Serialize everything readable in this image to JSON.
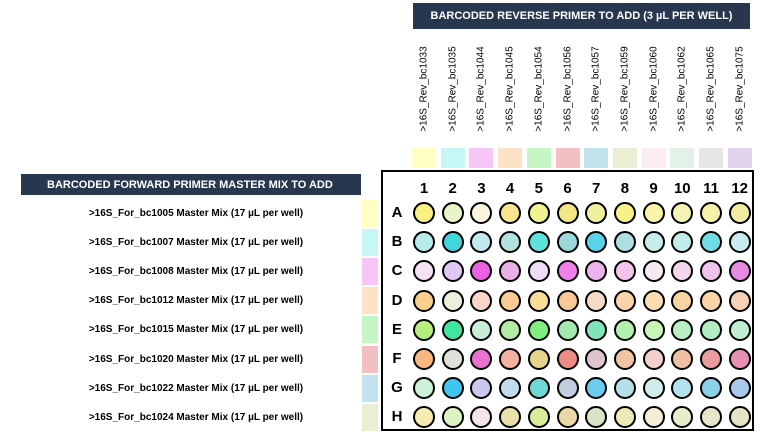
{
  "reverse_header": "BARCODED REVERSE PRIMER TO ADD (3 µL PER WELL)",
  "forward_header": "BARCODED FORWARD PRIMER MASTER MIX TO ADD",
  "reverse_primers": [
    {
      "label": ">16S_Rev_bc1033",
      "color": "#ffffc4"
    },
    {
      "label": ">16S_Rev_bc1035",
      "color": "#c6f6f6"
    },
    {
      "label": ">16S_Rev_bc1044",
      "color": "#f8c6f6"
    },
    {
      "label": ">16S_Rev_bc1045",
      "color": "#fde2c8"
    },
    {
      "label": ">16S_Rev_bc1054",
      "color": "#c6f6c4"
    },
    {
      "label": ">16S_Rev_bc1056",
      "color": "#f2c0c0"
    },
    {
      "label": ">16S_Rev_bc1057",
      "color": "#c2e2ee"
    },
    {
      "label": ">16S_Rev_bc1059",
      "color": "#eaeed4"
    },
    {
      "label": ">16S_Rev_bc1060",
      "color": "#fceef0"
    },
    {
      "label": ">16S_Rev_bc1062",
      "color": "#e2f2e6"
    },
    {
      "label": ">16S_Rev_bc1065",
      "color": "#e6e6e6"
    },
    {
      "label": ">16S_Rev_bc1075",
      "color": "#e2d2ee"
    }
  ],
  "forward_primers": [
    {
      "label": ">16S_For_bc1005 Master Mix (17 µL per well)",
      "color": "#ffffc4"
    },
    {
      "label": ">16S_For_bc1007 Master Mix (17 µL per well)",
      "color": "#c6f6f6"
    },
    {
      "label": ">16S_For_bc1008 Master Mix (17 µL per well)",
      "color": "#f8c6f6"
    },
    {
      "label": ">16S_For_bc1012 Master Mix (17 µL per well)",
      "color": "#fde2c8"
    },
    {
      "label": ">16S_For_bc1015 Master Mix (17 µL per well)",
      "color": "#c6f6c4"
    },
    {
      "label": ">16S_For_bc1020 Master Mix (17 µL per well)",
      "color": "#f2c0c0"
    },
    {
      "label": ">16S_For_bc1022 Master Mix (17 µL per well)",
      "color": "#c2e2ee"
    },
    {
      "label": ">16S_For_bc1024 Master Mix (17 µL per well)",
      "color": "#eaeed4"
    }
  ],
  "plate": {
    "columns": [
      "1",
      "2",
      "3",
      "4",
      "5",
      "6",
      "7",
      "8",
      "9",
      "10",
      "11",
      "12"
    ],
    "rows": [
      "A",
      "B",
      "C",
      "D",
      "E",
      "F",
      "G",
      "H"
    ],
    "wells": [
      [
        "#fcf080",
        "#e8f4c8",
        "#fcf6e0",
        "#f8e48c",
        "#f0f490",
        "#f4e884",
        "#f0f0a0",
        "#f8f088",
        "#fcf4a8",
        "#f4f2b4",
        "#f4f2a8",
        "#f0eca4"
      ],
      [
        "#b6ecea",
        "#40d6dc",
        "#c4e6ee",
        "#b4e2e0",
        "#5ee2dc",
        "#9ad8dc",
        "#5ad2ea",
        "#acdee2",
        "#c6ecec",
        "#c0ecec",
        "#70dce4",
        "#c8eaf0"
      ],
      [
        "#f6e2f4",
        "#e0c8f4",
        "#ec60e4",
        "#eab0e8",
        "#f0dcf6",
        "#f080e8",
        "#ecb4ec",
        "#f4c4ec",
        "#f8e8f4",
        "#f4d6ee",
        "#eec4ec",
        "#e88ae4"
      ],
      [
        "#fbd08c",
        "#eeeedc",
        "#fcd4cc",
        "#f8cc94",
        "#f8dc98",
        "#f8c896",
        "#f4dcc4",
        "#fad4a8",
        "#fcdcb0",
        "#f6d4a4",
        "#f8d4a8",
        "#f8d0b4"
      ],
      [
        "#b8ee80",
        "#40e6a0",
        "#c8eed8",
        "#b2eca4",
        "#7ef080",
        "#a4eab0",
        "#80e4b8",
        "#b2f0b0",
        "#c8f4b8",
        "#bceec4",
        "#b2ecc0",
        "#c0eed0"
      ],
      [
        "#f8b880",
        "#e0e0d8",
        "#ec70d0",
        "#f4b0a0",
        "#e4d48c",
        "#ec8c84",
        "#e0c4cc",
        "#f0c4a4",
        "#f4d0cc",
        "#f0c0a4",
        "#ec9ca0",
        "#e890b4"
      ],
      [
        "#cef0d8",
        "#40c4f0",
        "#c8c8f0",
        "#c0dcec",
        "#70d8d4",
        "#c0cce0",
        "#6cccee",
        "#b4e0e8",
        "#d0ecec",
        "#b4e2ec",
        "#8cd0e8",
        "#a8c8ec"
      ],
      [
        "#f6ecb0",
        "#dcf4c4",
        "#f4e4e8",
        "#e8e0a8",
        "#d8ec9c",
        "#ead8a8",
        "#d8e4c8",
        "#eceab8",
        "#f4eed8",
        "#e8eccc",
        "#e8e6c8",
        "#e4e4c4"
      ]
    ]
  }
}
